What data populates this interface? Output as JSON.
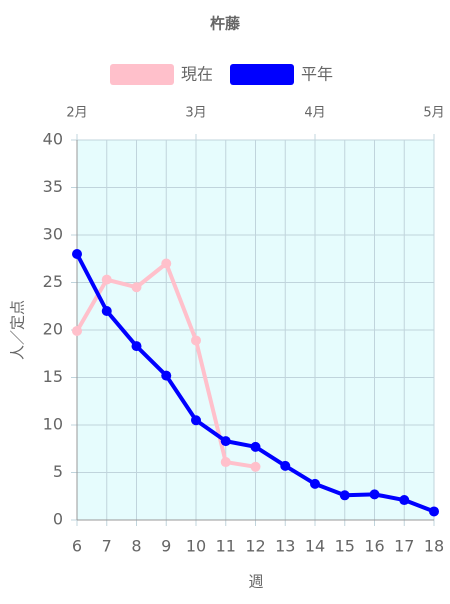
{
  "chart_data": {
    "type": "line",
    "title": "杵藤",
    "x_label": "週",
    "y_label": "人／定点",
    "x": [
      6,
      7,
      8,
      9,
      10,
      11,
      12,
      13,
      14,
      15,
      16,
      17,
      18
    ],
    "xlim": [
      6,
      18
    ],
    "xticks": [
      6,
      7,
      8,
      9,
      10,
      11,
      12,
      13,
      14,
      15,
      16,
      17,
      18
    ],
    "x2ticks": [
      {
        "value": 6,
        "label": "2月"
      },
      {
        "value": 10,
        "label": "3月"
      },
      {
        "value": 14,
        "label": "4月"
      },
      {
        "value": 18,
        "label": "5月"
      }
    ],
    "ylim": [
      0,
      40
    ],
    "yticks": [
      0,
      5,
      10,
      15,
      20,
      25,
      30,
      35,
      40
    ],
    "grid": true,
    "legend": "top",
    "plot_background": "#e6fcfd",
    "series": [
      {
        "name": "現在",
        "color": "#ffc0cb",
        "values": [
          19.9,
          25.3,
          24.5,
          27,
          18.9,
          6.1,
          5.6,
          null,
          null,
          null,
          null,
          null,
          null
        ]
      },
      {
        "name": "平年",
        "color": "#0000ff",
        "values": [
          28,
          22,
          18.3,
          15.2,
          10.5,
          8.3,
          7.7,
          5.7,
          3.8,
          2.6,
          2.7,
          2.1,
          0.9
        ]
      }
    ]
  }
}
